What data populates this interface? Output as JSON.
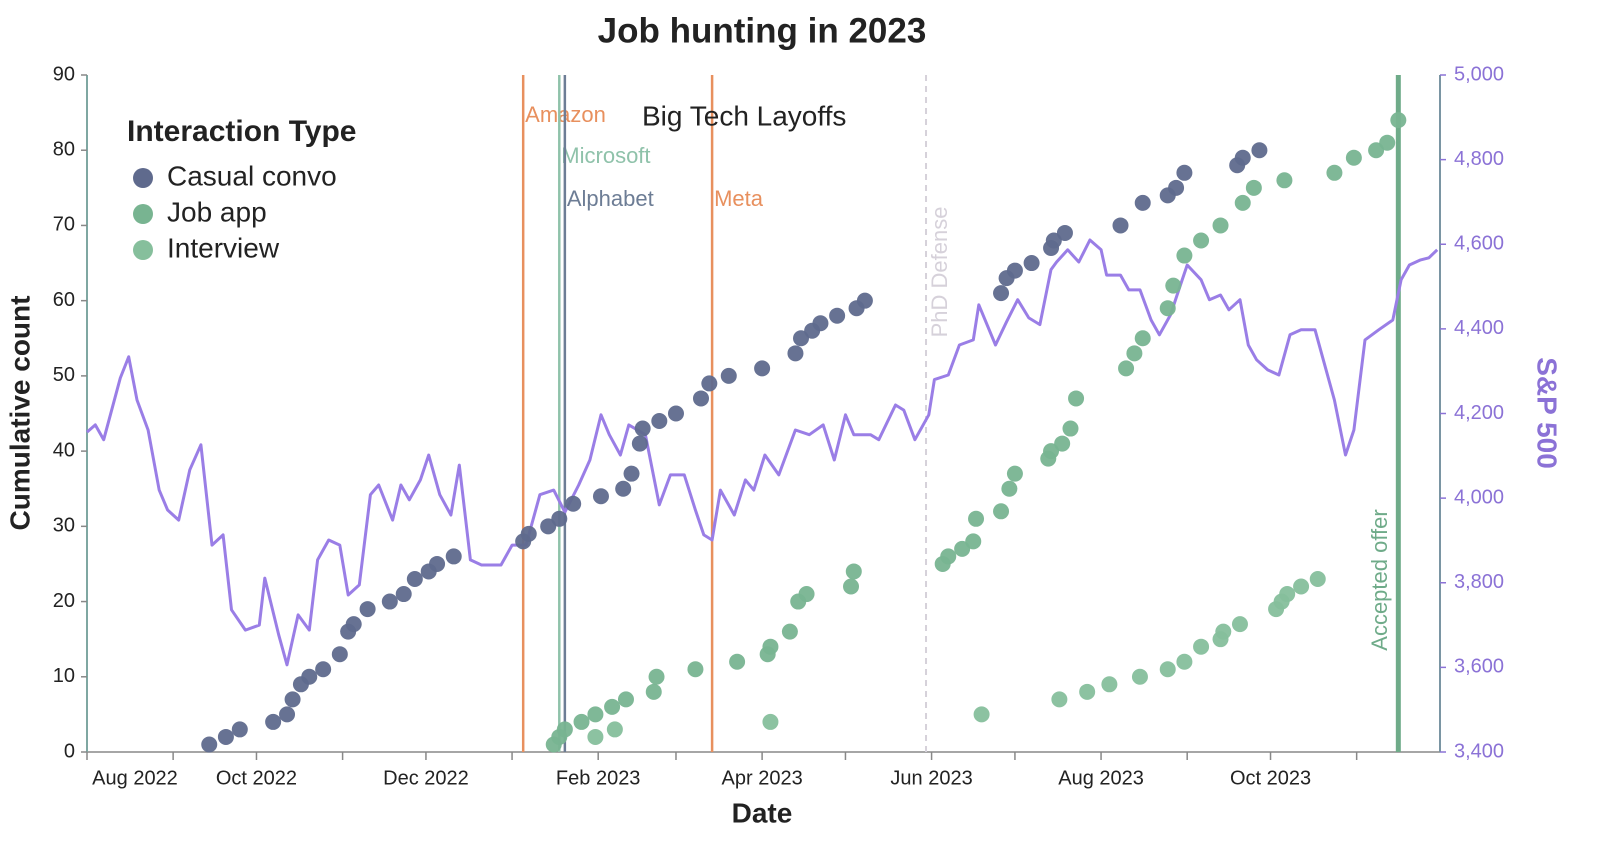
{
  "chart_data": {
    "type": "scatter",
    "title": "Job hunting in 2023",
    "xlabel": "Date",
    "ylabel": "Cumulative count",
    "y2label": "S&P 500",
    "legend_title": "Interaction Type",
    "legend": "top-left",
    "xlim": [
      "2022-08-01",
      "2023-12-01"
    ],
    "xticks": [
      {
        "value": "2022-08-01",
        "label": "Aug 2022"
      },
      {
        "value": "2022-10-01",
        "label": "Oct 2022"
      },
      {
        "value": "2022-12-01",
        "label": "Dec 2022"
      },
      {
        "value": "2023-02-01",
        "label": "Feb 2023"
      },
      {
        "value": "2023-04-01",
        "label": "Apr 2023"
      },
      {
        "value": "2023-06-01",
        "label": "Jun 2023"
      },
      {
        "value": "2023-08-01",
        "label": "Aug 2023"
      },
      {
        "value": "2023-10-01",
        "label": "Oct 2023"
      }
    ],
    "xminorticks": [
      "2022-09-01",
      "2022-11-01",
      "2023-01-01",
      "2023-03-01",
      "2023-05-01",
      "2023-07-01",
      "2023-09-01",
      "2023-11-01"
    ],
    "ylim": [
      0,
      90
    ],
    "yticks": [
      0,
      10,
      20,
      30,
      40,
      50,
      60,
      70,
      80,
      90
    ],
    "y2lim": [
      3400,
      5000
    ],
    "y2ticks": [
      {
        "value": 3400,
        "label": "3,400"
      },
      {
        "value": 3600,
        "label": "3,600"
      },
      {
        "value": 3800,
        "label": "3,800"
      },
      {
        "value": 4000,
        "label": "4,000"
      },
      {
        "value": 4200,
        "label": "4,200"
      },
      {
        "value": 4400,
        "label": "4,400"
      },
      {
        "value": 4600,
        "label": "4,600"
      },
      {
        "value": 4800,
        "label": "4,800"
      },
      {
        "value": 5000,
        "label": "5,000"
      }
    ],
    "series": [
      {
        "name": "Casual convo",
        "color": "#5f6a8d",
        "x": [
          "2022-09-14",
          "2022-09-20",
          "2022-09-25",
          "2022-10-07",
          "2022-10-12",
          "2022-10-14",
          "2022-10-17",
          "2022-10-20",
          "2022-10-25",
          "2022-10-31",
          "2022-11-03",
          "2022-11-05",
          "2022-11-10",
          "2022-11-18",
          "2022-11-23",
          "2022-11-27",
          "2022-12-02",
          "2022-12-05",
          "2022-12-11",
          "2023-01-05",
          "2023-01-07",
          "2023-01-14",
          "2023-01-18",
          "2023-01-23",
          "2023-02-02",
          "2023-02-10",
          "2023-02-13",
          "2023-02-16",
          "2023-02-17",
          "2023-02-23",
          "2023-03-01",
          "2023-03-10",
          "2023-03-13",
          "2023-03-20",
          "2023-04-01",
          "2023-04-13",
          "2023-04-15",
          "2023-04-19",
          "2023-04-22",
          "2023-04-28",
          "2023-05-05",
          "2023-05-08",
          "2023-06-26",
          "2023-06-28",
          "2023-07-01",
          "2023-07-07",
          "2023-07-14",
          "2023-07-15",
          "2023-07-19",
          "2023-08-08",
          "2023-08-16",
          "2023-08-25",
          "2023-08-28",
          "2023-08-31",
          "2023-09-19",
          "2023-09-21",
          "2023-09-27"
        ],
        "values": [
          1,
          2,
          3,
          4,
          5,
          7,
          9,
          10,
          11,
          13,
          16,
          17,
          19,
          20,
          21,
          23,
          24,
          25,
          26,
          28,
          29,
          30,
          31,
          33,
          34,
          35,
          37,
          41,
          43,
          44,
          45,
          47,
          49,
          50,
          51,
          53,
          55,
          56,
          57,
          58,
          59,
          60,
          61,
          63,
          64,
          65,
          67,
          68,
          69,
          70,
          73,
          74,
          75,
          77,
          78,
          79,
          80
        ]
      },
      {
        "name": "Job app",
        "color": "#78b491",
        "x": [
          "2023-01-16",
          "2023-01-18",
          "2023-01-20",
          "2023-01-26",
          "2023-01-31",
          "2023-02-06",
          "2023-02-11",
          "2023-02-21",
          "2023-02-22",
          "2023-03-08",
          "2023-03-23",
          "2023-04-03",
          "2023-04-04",
          "2023-04-11",
          "2023-04-14",
          "2023-04-17",
          "2023-05-03",
          "2023-05-04",
          "2023-06-05",
          "2023-06-07",
          "2023-06-12",
          "2023-06-16",
          "2023-06-17",
          "2023-06-26",
          "2023-06-29",
          "2023-07-01",
          "2023-07-13",
          "2023-07-14",
          "2023-07-18",
          "2023-07-21",
          "2023-07-23",
          "2023-08-10",
          "2023-08-13",
          "2023-08-16",
          "2023-08-25",
          "2023-08-27",
          "2023-08-31",
          "2023-09-06",
          "2023-09-13",
          "2023-09-21",
          "2023-09-25",
          "2023-10-06",
          "2023-10-24",
          "2023-10-31",
          "2023-11-08",
          "2023-11-12",
          "2023-11-16"
        ],
        "values": [
          1,
          2,
          3,
          4,
          5,
          6,
          7,
          8,
          10,
          11,
          12,
          13,
          14,
          16,
          20,
          21,
          22,
          24,
          25,
          26,
          27,
          28,
          31,
          32,
          35,
          37,
          39,
          40,
          41,
          43,
          47,
          51,
          53,
          55,
          59,
          62,
          66,
          68,
          70,
          73,
          75,
          76,
          77,
          79,
          80,
          81,
          84
        ]
      },
      {
        "name": "Interview",
        "color": "#86bf9c",
        "x": [
          "2023-01-31",
          "2023-02-07",
          "2023-04-04",
          "2023-06-19",
          "2023-07-17",
          "2023-07-27",
          "2023-08-04",
          "2023-08-15",
          "2023-08-25",
          "2023-08-31",
          "2023-09-06",
          "2023-09-13",
          "2023-09-14",
          "2023-09-20",
          "2023-10-03",
          "2023-10-05",
          "2023-10-07",
          "2023-10-12",
          "2023-10-18"
        ],
        "values": [
          2,
          3,
          4,
          5,
          7,
          8,
          9,
          10,
          11,
          12,
          14,
          15,
          16,
          17,
          19,
          20,
          21,
          22,
          23
        ]
      }
    ],
    "line": {
      "color": "#9a7ee6",
      "axis": "y2",
      "x": [
        "2022-08-01",
        "2022-08-04",
        "2022-08-07",
        "2022-08-13",
        "2022-08-16",
        "2022-08-19",
        "2022-08-23",
        "2022-08-27",
        "2022-08-30",
        "2022-09-03",
        "2022-09-07",
        "2022-09-11",
        "2022-09-15",
        "2022-09-19",
        "2022-09-22",
        "2022-09-27",
        "2022-10-02",
        "2022-10-04",
        "2022-10-09",
        "2022-10-12",
        "2022-10-16",
        "2022-10-20",
        "2022-10-23",
        "2022-10-27",
        "2022-10-31",
        "2022-11-03",
        "2022-11-07",
        "2022-11-11",
        "2022-11-14",
        "2022-11-19",
        "2022-11-22",
        "2022-11-25",
        "2022-11-29",
        "2022-12-02",
        "2022-12-06",
        "2022-12-10",
        "2022-12-13",
        "2022-12-17",
        "2022-12-21",
        "2022-12-28",
        "2023-01-01",
        "2023-01-06",
        "2023-01-11",
        "2023-01-16",
        "2023-01-20",
        "2023-01-25",
        "2023-01-29",
        "2023-02-02",
        "2023-02-05",
        "2023-02-09",
        "2023-02-12",
        "2023-02-18",
        "2023-02-23",
        "2023-02-27",
        "2023-03-04",
        "2023-03-08",
        "2023-03-11",
        "2023-03-14",
        "2023-03-17",
        "2023-03-22",
        "2023-03-26",
        "2023-03-29",
        "2023-04-02",
        "2023-04-07",
        "2023-04-13",
        "2023-04-18",
        "2023-04-23",
        "2023-04-27",
        "2023-05-01",
        "2023-05-04",
        "2023-05-10",
        "2023-05-13",
        "2023-05-19",
        "2023-05-22",
        "2023-05-26",
        "2023-05-31",
        "2023-06-02",
        "2023-06-07",
        "2023-06-11",
        "2023-06-16",
        "2023-06-18",
        "2023-06-24",
        "2023-06-28",
        "2023-07-02",
        "2023-07-06",
        "2023-07-10",
        "2023-07-14",
        "2023-07-16",
        "2023-07-20",
        "2023-07-24",
        "2023-07-28",
        "2023-08-01",
        "2023-08-03",
        "2023-08-08",
        "2023-08-11",
        "2023-08-15",
        "2023-08-19",
        "2023-08-22",
        "2023-08-26",
        "2023-08-29",
        "2023-09-01",
        "2023-09-06",
        "2023-09-09",
        "2023-09-13",
        "2023-09-16",
        "2023-09-20",
        "2023-09-23",
        "2023-09-26",
        "2023-09-30",
        "2023-10-04",
        "2023-10-08",
        "2023-10-12",
        "2023-10-17",
        "2023-10-20",
        "2023-10-24",
        "2023-10-28",
        "2023-10-31",
        "2023-11-04",
        "2023-11-09",
        "2023-11-14",
        "2023-11-17",
        "2023-11-20",
        "2023-11-24",
        "2023-11-27",
        "2023-11-30"
      ],
      "values": [
        4156,
        4173,
        4138,
        4284,
        4334,
        4232,
        4161,
        4019,
        3972,
        3948,
        4067,
        4126,
        3889,
        3913,
        3736,
        3688,
        3700,
        3811,
        3677,
        3606,
        3724,
        3688,
        3854,
        3901,
        3889,
        3771,
        3795,
        4008,
        4031,
        3948,
        4031,
        3996,
        4043,
        4102,
        4008,
        3960,
        4078,
        3854,
        3842,
        3842,
        3889,
        3889,
        4008,
        4019,
        3967,
        4031,
        4090,
        4197,
        4150,
        4102,
        4173,
        4150,
        3984,
        4055,
        4055,
        3972,
        3913,
        3901,
        4019,
        3960,
        4043,
        4019,
        4102,
        4055,
        4161,
        4150,
        4173,
        4090,
        4197,
        4150,
        4150,
        4138,
        4220,
        4208,
        4138,
        4197,
        4280,
        4291,
        4362,
        4374,
        4457,
        4362,
        4417,
        4469,
        4426,
        4410,
        4540,
        4558,
        4587,
        4558,
        4610,
        4587,
        4527,
        4527,
        4492,
        4492,
        4421,
        4386,
        4433,
        4492,
        4551,
        4516,
        4469,
        4480,
        4445,
        4469,
        4362,
        4327,
        4303,
        4291,
        4386,
        4398,
        4398,
        4327,
        4232,
        4102,
        4161,
        4374,
        4398,
        4421,
        4516,
        4551,
        4563,
        4568,
        4587
      ]
    },
    "annotations": [
      {
        "label": "Amazon",
        "x": "2023-01-05",
        "color": "#e8905e",
        "style": "solid"
      },
      {
        "label": "Microsoft",
        "x": "2023-01-18",
        "color": "#8fc2aa",
        "style": "solid"
      },
      {
        "label": "Alphabet",
        "x": "2023-01-20",
        "color": "#6d7d95",
        "style": "solid"
      },
      {
        "label": "Meta",
        "x": "2023-03-14",
        "color": "#e8905e",
        "style": "solid"
      },
      {
        "label": "PhD Defense",
        "x": "2023-05-30",
        "color": "#d6d1da",
        "style": "dashed"
      },
      {
        "label": "Accepted offer",
        "x": "2023-11-16",
        "color": "#6fab89",
        "style": "bold"
      }
    ],
    "annotation_text": "Big Tech Layoffs"
  }
}
